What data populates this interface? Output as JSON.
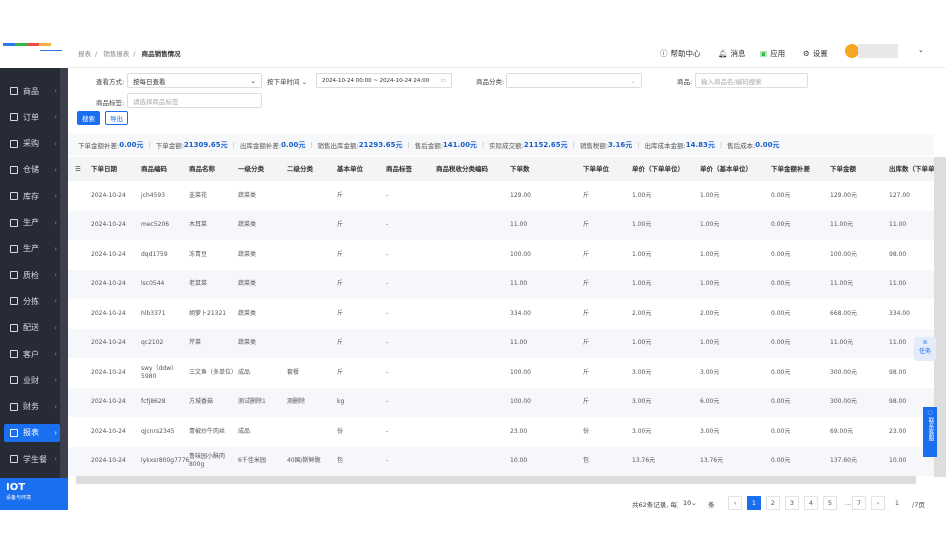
{
  "header": {
    "breadcrumbs": [
      "报表",
      "销售报表",
      "商品销售情况"
    ],
    "help": "帮助中心",
    "messages": "消息",
    "apps": "应用",
    "settings": "设置"
  },
  "sidebar": {
    "items": [
      {
        "label": "商品",
        "icon": "grid-icon"
      },
      {
        "label": "订单",
        "icon": "clipboard-icon"
      },
      {
        "label": "采购",
        "icon": "shop-icon"
      },
      {
        "label": "仓储",
        "icon": "warehouse-icon"
      },
      {
        "label": "库存",
        "icon": "home-icon"
      },
      {
        "label": "生产",
        "icon": "factory-icon"
      },
      {
        "label": "生产",
        "icon": "factory-icon"
      },
      {
        "label": "质检",
        "icon": "inspect-icon"
      },
      {
        "label": "分拣",
        "icon": "sort-icon"
      },
      {
        "label": "配送",
        "icon": "truck-icon"
      },
      {
        "label": "客户",
        "icon": "user-icon"
      },
      {
        "label": "业财",
        "icon": "chart-icon"
      },
      {
        "label": "财务",
        "icon": "finance-icon"
      },
      {
        "label": "报表",
        "icon": "pie-icon",
        "active": true
      },
      {
        "label": "学生餐",
        "icon": "meal-icon"
      }
    ],
    "iot": {
      "title": "IOT",
      "subtitle": "设备与环境"
    }
  },
  "filters": {
    "view_mode_label": "查看方式:",
    "view_mode_value": "按每日查看",
    "time_type": "按下单时间",
    "date_range": "2024-10-24 00:00 ~ 2024-10-24 24:00",
    "category_label": "商品分类:",
    "category_value": "",
    "product_label": "商品:",
    "product_placeholder": "输入商品名/编码搜索",
    "tag_label": "商品标签:",
    "tag_placeholder": "请选择商品标签",
    "search_button": "搜索",
    "export_button": "导出"
  },
  "summary": [
    {
      "label": "下单金额补差:",
      "value": "0.00元"
    },
    {
      "label": "下单金额:",
      "value": "21309.65元"
    },
    {
      "label": "出库金额补差:",
      "value": "0.00元"
    },
    {
      "label": "销售出库金额:",
      "value": "21293.65元"
    },
    {
      "label": "售后金额:",
      "value": "141.00元"
    },
    {
      "label": "实际成交额:",
      "value": "21152.65元"
    },
    {
      "label": "销售税额:",
      "value": "3.16元"
    },
    {
      "label": "出库成本金额:",
      "value": "14.83元"
    },
    {
      "label": "售后成本:",
      "value": "0.00元"
    }
  ],
  "table": {
    "columns": [
      "下单日期",
      "商品编码",
      "商品名称",
      "一级分类",
      "二级分类",
      "基本单位",
      "商品标签",
      "商品税收分类编码",
      "下单数",
      "下单单位",
      "单价（下单单位）",
      "单价（基本单位）",
      "下单金额补差",
      "下单金额",
      "出库数（下单单位）"
    ],
    "rows": [
      [
        "2024-10-24",
        "jch4593",
        "韭菜花",
        "蔬菜类",
        "",
        "斤",
        "-",
        "",
        "129.00",
        "斤",
        "1.00元",
        "1.00元",
        "0.00元",
        "129.00元",
        "127.00"
      ],
      [
        "2024-10-24",
        "mec5206",
        "木耳菜",
        "蔬菜类",
        "",
        "斤",
        "-",
        "",
        "11.00",
        "斤",
        "1.00元",
        "1.00元",
        "0.00元",
        "11.00元",
        "11.00"
      ],
      [
        "2024-10-24",
        "dqd1759",
        "冻青豆",
        "蔬菜类",
        "",
        "斤",
        "-",
        "",
        "100.00",
        "斤",
        "1.00元",
        "1.00元",
        "0.00元",
        "100.00元",
        "98.00"
      ],
      [
        "2024-10-24",
        "lsc0544",
        "老鼠菜",
        "蔬菜类",
        "",
        "斤",
        "-",
        "",
        "11.00",
        "斤",
        "1.00元",
        "1.00元",
        "0.00元",
        "11.00元",
        "11.00"
      ],
      [
        "2024-10-24",
        "hlb3371",
        "胡萝卜21321",
        "蔬菜类",
        "",
        "斤",
        "-",
        "",
        "334.00",
        "斤",
        "2.00元",
        "2.00元",
        "0.00元",
        "668.00元",
        "334.00"
      ],
      [
        "2024-10-24",
        "qc2102",
        "芹菜",
        "蔬菜类",
        "",
        "斤",
        "-",
        "",
        "11.00",
        "斤",
        "1.00元",
        "1.00元",
        "0.00元",
        "11.00元",
        "11.00"
      ],
      [
        "2024-10-24",
        "swy（ddw）5980",
        "三文鱼（多单位）",
        "成品",
        "套餐",
        "斤",
        "-",
        "",
        "100.00",
        "斤",
        "3.00元",
        "3.00元",
        "0.00元",
        "300.00元",
        "98.00"
      ],
      [
        "2024-10-24",
        "fcfj8628",
        "方城香菇",
        "测试删除1",
        "测删除",
        "kg",
        "-",
        "",
        "100.00",
        "斤",
        "3.00元",
        "6.00元",
        "0.00元",
        "300.00元",
        "98.00"
      ],
      [
        "2024-10-24",
        "qjcnrs2345",
        "青椒炒牛肉丝",
        "成品",
        "",
        "份",
        "-",
        "",
        "23.00",
        "份",
        "3.00元",
        "3.00元",
        "0.00元",
        "69.00元",
        "23.00"
      ],
      [
        "2024-10-24",
        "lykxsr800g7776",
        "鲁味园小酥肉800g",
        "6千佳米园",
        "40国/斯鲜脆",
        "包",
        "-",
        "",
        "10.00",
        "包",
        "13.76元",
        "13.76元",
        "0.00元",
        "137.60元",
        "10.00"
      ]
    ]
  },
  "pagination": {
    "total": "共62条记录, 每页",
    "page_size": "10",
    "unit": "条",
    "pages": [
      "1",
      "2",
      "3",
      "4",
      "5",
      "...",
      "7"
    ],
    "current": "1",
    "jump_value": "1",
    "total_pages": "/7页"
  },
  "floating": {
    "task": "任务",
    "service": "联系客服"
  },
  "colors": {
    "accent": "#1a6ef0",
    "sidebar": "#262b36"
  }
}
